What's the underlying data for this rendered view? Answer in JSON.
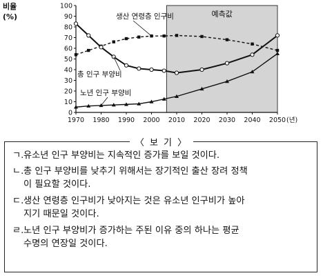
{
  "chart_data": {
    "type": "line",
    "ylabel": "비율",
    "yunit": "(%)",
    "xunit": "(년)",
    "ylim": [
      0,
      100
    ],
    "yticks": [
      0,
      10,
      20,
      30,
      40,
      50,
      60,
      70,
      80,
      90,
      100
    ],
    "xlim": [
      1970,
      2050
    ],
    "xticks": [
      1970,
      1980,
      1990,
      2000,
      2010,
      2020,
      2030,
      2040,
      2050
    ],
    "shaded_region": {
      "from": 2006,
      "to": 2050,
      "label": "예측값"
    },
    "grid": false,
    "series": [
      {
        "name": "생산 연령층 인구비",
        "style": "dashed-square",
        "x": [
          1970,
          1975,
          1980,
          1985,
          1990,
          1995,
          2000,
          2005,
          2010,
          2020,
          2030,
          2040,
          2050
        ],
        "values": [
          54,
          58,
          62,
          66,
          69,
          70.5,
          71.5,
          71.5,
          72,
          71,
          68,
          64,
          58
        ]
      },
      {
        "name": "총 인구 부양비",
        "style": "solid-circle",
        "x": [
          1970,
          1975,
          1980,
          1985,
          1990,
          1995,
          2000,
          2005,
          2010,
          2020,
          2030,
          2040,
          2050
        ],
        "values": [
          83,
          72,
          61,
          52,
          44,
          41,
          40,
          39,
          37,
          40,
          46,
          54,
          72
        ]
      },
      {
        "name": "노년 인구 부양비",
        "style": "solid-triangle",
        "x": [
          1970,
          1975,
          1980,
          1985,
          1990,
          1995,
          2000,
          2005,
          2010,
          2020,
          2030,
          2040,
          2050
        ],
        "values": [
          5,
          6,
          6.5,
          7,
          7.5,
          8,
          10,
          12.5,
          15,
          22,
          29,
          38,
          55
        ]
      }
    ]
  },
  "box": {
    "title": "〈 보 기 〉",
    "items": [
      {
        "mark": "ㄱ.",
        "line1": "유소년 인구 부양비는 지속적인 증가를 보일 것이다.",
        "line2": ""
      },
      {
        "mark": "ㄴ.",
        "line1": "총 인구 부양비를 낮추기 위해서는 장기적인 출산 장려 정책",
        "line2": "이 필요할 것이다."
      },
      {
        "mark": "ㄷ.",
        "line1": "생산 연령층 인구비가 낮아지는 것은 유소년 인구비가 높아",
        "line2": "지기 때문일 것이다."
      },
      {
        "mark": "ㄹ.",
        "line1": "노년 인구 부양비가 증가하는 주된 이유 중의 하나는 평균",
        "line2": "수명의 연장일 것이다."
      }
    ]
  }
}
